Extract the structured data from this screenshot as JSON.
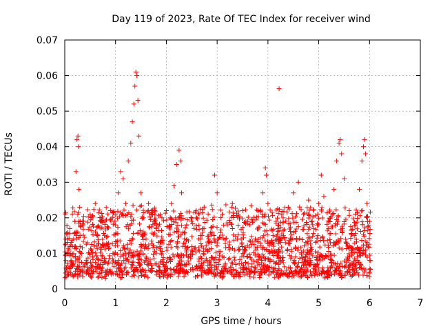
{
  "chart_data": {
    "type": "scatter",
    "title": "Day 119 of 2023, Rate Of TEC Index for receiver wind",
    "xlabel": "GPS time / hours",
    "ylabel": "ROTI / TECUs",
    "xlim": [
      0,
      7
    ],
    "ylim": [
      0,
      0.07
    ],
    "xticks": [
      "0",
      "1",
      "2",
      "3",
      "4",
      "5",
      "6",
      "7"
    ],
    "yticks": [
      "0",
      "0.01",
      "0.02",
      "0.03",
      "0.04",
      "0.05",
      "0.06",
      "0.07"
    ],
    "grid": true,
    "marker": "+",
    "color": "#ff0000",
    "series": [
      {
        "points": [
          [
            0.02,
            0.008
          ],
          [
            0.05,
            0.014
          ],
          [
            0.08,
            0.011
          ],
          [
            0.1,
            0.017
          ],
          [
            0.12,
            0.006
          ],
          [
            0.15,
            0.012
          ],
          [
            0.18,
            0.009
          ],
          [
            0.2,
            0.019
          ],
          [
            0.22,
            0.033
          ],
          [
            0.24,
            0.042
          ],
          [
            0.26,
            0.043
          ],
          [
            0.27,
            0.04
          ],
          [
            0.28,
            0.028
          ],
          [
            0.3,
            0.015
          ],
          [
            0.33,
            0.01
          ],
          [
            0.36,
            0.018
          ],
          [
            0.4,
            0.007
          ],
          [
            0.45,
            0.013
          ],
          [
            0.5,
            0.021
          ],
          [
            0.55,
            0.009
          ],
          [
            0.6,
            0.024
          ],
          [
            0.65,
            0.015
          ],
          [
            0.7,
            0.006
          ],
          [
            0.75,
            0.019
          ],
          [
            0.8,
            0.003
          ],
          [
            0.85,
            0.012
          ],
          [
            0.9,
            0.022
          ],
          [
            0.95,
            0.01
          ],
          [
            1.0,
            0.018
          ],
          [
            1.05,
            0.027
          ],
          [
            1.1,
            0.033
          ],
          [
            1.15,
            0.031
          ],
          [
            1.2,
            0.024
          ],
          [
            1.25,
            0.036
          ],
          [
            1.3,
            0.041
          ],
          [
            1.33,
            0.047
          ],
          [
            1.36,
            0.052
          ],
          [
            1.38,
            0.057
          ],
          [
            1.4,
            0.061
          ],
          [
            1.42,
            0.06
          ],
          [
            1.44,
            0.053
          ],
          [
            1.46,
            0.043
          ],
          [
            1.5,
            0.027
          ],
          [
            1.55,
            0.02
          ],
          [
            1.6,
            0.014
          ],
          [
            1.65,
            0.024
          ],
          [
            1.7,
            0.021
          ],
          [
            1.8,
            0.017
          ],
          [
            1.9,
            0.013
          ],
          [
            2.0,
            0.022
          ],
          [
            2.1,
            0.024
          ],
          [
            2.15,
            0.029
          ],
          [
            2.2,
            0.035
          ],
          [
            2.25,
            0.039
          ],
          [
            2.28,
            0.036
          ],
          [
            2.3,
            0.027
          ],
          [
            2.4,
            0.018
          ],
          [
            2.5,
            0.011
          ],
          [
            2.6,
            0.02
          ],
          [
            2.7,
            0.015
          ],
          [
            2.8,
            0.008
          ],
          [
            2.9,
            0.016
          ],
          [
            2.95,
            0.032
          ],
          [
            3.0,
            0.027
          ],
          [
            3.1,
            0.021
          ],
          [
            3.2,
            0.018
          ],
          [
            3.3,
            0.024
          ],
          [
            3.4,
            0.014
          ],
          [
            3.5,
            0.022
          ],
          [
            3.6,
            0.009
          ],
          [
            3.7,
            0.019
          ],
          [
            3.8,
            0.022
          ],
          [
            3.9,
            0.027
          ],
          [
            3.95,
            0.034
          ],
          [
            3.97,
            0.032
          ],
          [
            4.0,
            0.024
          ],
          [
            4.1,
            0.015
          ],
          [
            4.2,
            0.009
          ],
          [
            4.22,
            0.0563
          ],
          [
            4.3,
            0.02
          ],
          [
            4.4,
            0.023
          ],
          [
            4.5,
            0.027
          ],
          [
            4.6,
            0.03
          ],
          [
            4.7,
            0.021
          ],
          [
            4.8,
            0.025
          ],
          [
            4.9,
            0.017
          ],
          [
            5.0,
            0.024
          ],
          [
            5.05,
            0.032
          ],
          [
            5.1,
            0.026
          ],
          [
            5.2,
            0.019
          ],
          [
            5.3,
            0.028
          ],
          [
            5.35,
            0.036
          ],
          [
            5.4,
            0.041
          ],
          [
            5.42,
            0.042
          ],
          [
            5.45,
            0.038
          ],
          [
            5.5,
            0.031
          ],
          [
            5.6,
            0.022
          ],
          [
            5.7,
            0.015
          ],
          [
            5.8,
            0.028
          ],
          [
            5.85,
            0.036
          ],
          [
            5.88,
            0.04
          ],
          [
            5.9,
            0.042
          ],
          [
            5.92,
            0.038
          ],
          [
            5.95,
            0.024
          ],
          [
            6.0,
            0.019
          ],
          [
            6.02,
            0.008
          ]
        ]
      }
    ]
  }
}
